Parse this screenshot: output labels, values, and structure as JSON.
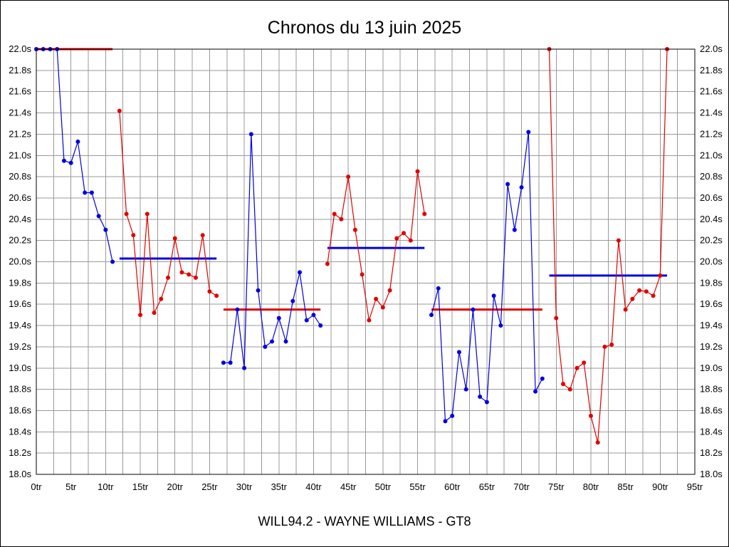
{
  "title": "Chronos du 13 juin 2025",
  "footer": "WILL94.2 - WAYNE WILLIAMS - GT8",
  "chart_data": {
    "type": "line",
    "title": "Chronos du 13 juin 2025",
    "subtitle": "WILL94.2 - WAYNE WILLIAMS - GT8",
    "x_unit": "tr",
    "y_unit": "s",
    "xlim": [
      0,
      95
    ],
    "ylim": [
      18.0,
      22.0
    ],
    "x_tick_step": 5,
    "y_tick_step": 0.2,
    "grid": true,
    "grid_step_x": 2.5,
    "grid_step_y": 0.2,
    "legend": "none",
    "x_ticks": [
      "0tr",
      "5tr",
      "10tr",
      "15tr",
      "20tr",
      "25tr",
      "30tr",
      "35tr",
      "40tr",
      "45tr",
      "50tr",
      "55tr",
      "60tr",
      "65tr",
      "70tr",
      "75tr",
      "80tr",
      "85tr",
      "90tr",
      "95tr"
    ],
    "y_ticks": [
      "22.0s",
      "21.8s",
      "21.6s",
      "21.4s",
      "21.2s",
      "21.0s",
      "20.8s",
      "20.6s",
      "20.4s",
      "20.2s",
      "20.0s",
      "19.8s",
      "19.6s",
      "19.4s",
      "19.2s",
      "19.0s",
      "18.8s",
      "18.6s",
      "18.4s",
      "18.2s",
      "18.0s"
    ],
    "colors": {
      "blue": "#0000e0",
      "red": "#e00000",
      "grid": "#999999",
      "frame": "#000000"
    },
    "segments": [
      {
        "name": "stint-1",
        "color": "blue",
        "start_lap": 0,
        "values": [
          22.0,
          22.0,
          22.0,
          22.0,
          20.95,
          20.93,
          21.13,
          20.65,
          20.65,
          20.43,
          20.3,
          20.0
        ]
      },
      {
        "name": "stint-2",
        "color": "red",
        "start_lap": 12,
        "values": [
          21.42,
          20.45,
          20.25,
          19.5,
          20.45,
          19.52,
          19.65,
          19.85,
          20.22,
          19.9,
          19.88,
          19.85,
          20.25,
          19.72,
          19.68
        ]
      },
      {
        "name": "stint-3",
        "color": "blue",
        "start_lap": 27,
        "values": [
          19.05,
          19.05,
          19.55,
          19.0,
          21.2,
          19.73,
          19.2,
          19.25,
          19.47,
          19.25,
          19.63,
          19.9,
          19.45,
          19.5,
          19.4
        ]
      },
      {
        "name": "stint-4",
        "color": "red",
        "start_lap": 42,
        "values": [
          19.98,
          20.45,
          20.4,
          20.8,
          20.3,
          19.88,
          19.45,
          19.65,
          19.57,
          19.73,
          20.22,
          20.27,
          20.2,
          20.85,
          20.45
        ]
      },
      {
        "name": "stint-5",
        "color": "blue",
        "start_lap": 57,
        "values": [
          19.5,
          19.75,
          18.5,
          18.55,
          19.15,
          18.8,
          19.55,
          18.73,
          18.68,
          19.68,
          19.4,
          20.73,
          20.3,
          20.7,
          21.22,
          18.78,
          18.9
        ]
      },
      {
        "name": "stint-6",
        "color": "red",
        "start_lap": 74,
        "values": [
          22.0,
          19.47,
          18.85,
          18.8,
          19.0,
          19.05,
          18.55,
          18.3,
          19.2,
          19.22,
          20.2,
          19.55,
          19.65,
          19.73,
          19.72,
          19.68,
          19.87,
          22.0
        ]
      }
    ],
    "avg_lines": [
      {
        "color": "red",
        "from_lap": 0,
        "to_lap": 11,
        "value": 22.0
      },
      {
        "color": "blue",
        "from_lap": 12,
        "to_lap": 26,
        "value": 20.03
      },
      {
        "color": "red",
        "from_lap": 27,
        "to_lap": 41,
        "value": 19.55
      },
      {
        "color": "blue",
        "from_lap": 42,
        "to_lap": 56,
        "value": 20.13
      },
      {
        "color": "red",
        "from_lap": 57,
        "to_lap": 73,
        "value": 19.55
      },
      {
        "color": "blue",
        "from_lap": 74,
        "to_lap": 91,
        "value": 19.87
      }
    ]
  }
}
